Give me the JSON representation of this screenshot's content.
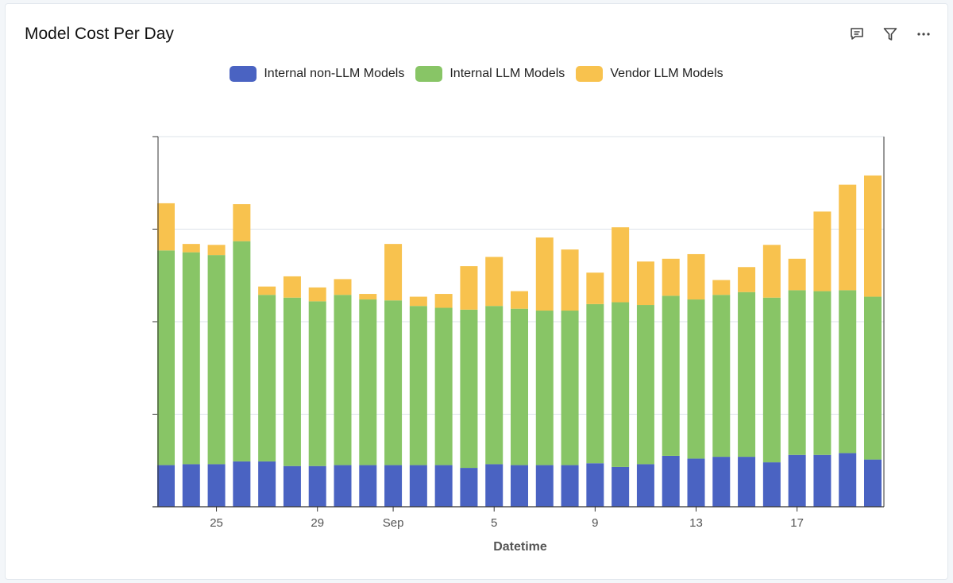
{
  "header": {
    "title": "Model Cost Per Day",
    "icons": [
      "comment-icon",
      "filter-icon",
      "more-icon"
    ]
  },
  "chart_data": {
    "type": "bar",
    "stacked": true,
    "title": "Model Cost Per Day",
    "xlabel": "Datetime",
    "ylabel": "",
    "y_tick_labels_visible": false,
    "ylim": [
      0,
      4
    ],
    "grid": true,
    "legend": "top-center",
    "categories": [
      "Aug 23",
      "Aug 24",
      "Aug 25",
      "Aug 26",
      "Aug 27",
      "Aug 28",
      "Aug 29",
      "Aug 30",
      "Aug 31",
      "Sep 1",
      "Sep 2",
      "Sep 3",
      "Sep 4",
      "Sep 5",
      "Sep 6",
      "Sep 7",
      "Sep 8",
      "Sep 9",
      "Sep 10",
      "Sep 11",
      "Sep 12",
      "Sep 13",
      "Sep 14",
      "Sep 15",
      "Sep 16",
      "Sep 17",
      "Sep 18",
      "Sep 19",
      "Sep 20"
    ],
    "x_tick_labels": [
      {
        "index": 2,
        "label": "25"
      },
      {
        "index": 6,
        "label": "29"
      },
      {
        "index": 9,
        "label": "Sep"
      },
      {
        "index": 13,
        "label": "5"
      },
      {
        "index": 17,
        "label": "9"
      },
      {
        "index": 21,
        "label": "13"
      },
      {
        "index": 25,
        "label": "17"
      }
    ],
    "series": [
      {
        "name": "Internal non-LLM Models",
        "color": "#4a63c2",
        "values": [
          0.45,
          0.46,
          0.46,
          0.49,
          0.49,
          0.44,
          0.44,
          0.45,
          0.45,
          0.45,
          0.45,
          0.45,
          0.42,
          0.46,
          0.45,
          0.45,
          0.45,
          0.47,
          0.43,
          0.46,
          0.55,
          0.52,
          0.54,
          0.54,
          0.48,
          0.56,
          0.56,
          0.58,
          0.51
        ]
      },
      {
        "name": "Internal LLM Models",
        "color": "#88c566",
        "values": [
          2.32,
          2.29,
          2.26,
          2.38,
          1.8,
          1.82,
          1.78,
          1.84,
          1.79,
          1.78,
          1.72,
          1.7,
          1.71,
          1.71,
          1.69,
          1.67,
          1.67,
          1.72,
          1.78,
          1.72,
          1.73,
          1.72,
          1.75,
          1.78,
          1.78,
          1.78,
          1.77,
          1.76,
          1.76
        ]
      },
      {
        "name": "Vendor LLM Models",
        "color": "#f8c24e",
        "values": [
          0.51,
          0.09,
          0.11,
          0.4,
          0.09,
          0.23,
          0.15,
          0.17,
          0.06,
          0.61,
          0.1,
          0.15,
          0.47,
          0.53,
          0.19,
          0.79,
          0.66,
          0.34,
          0.81,
          0.47,
          0.4,
          0.49,
          0.16,
          0.27,
          0.57,
          0.34,
          0.86,
          1.14,
          1.31
        ]
      }
    ]
  }
}
